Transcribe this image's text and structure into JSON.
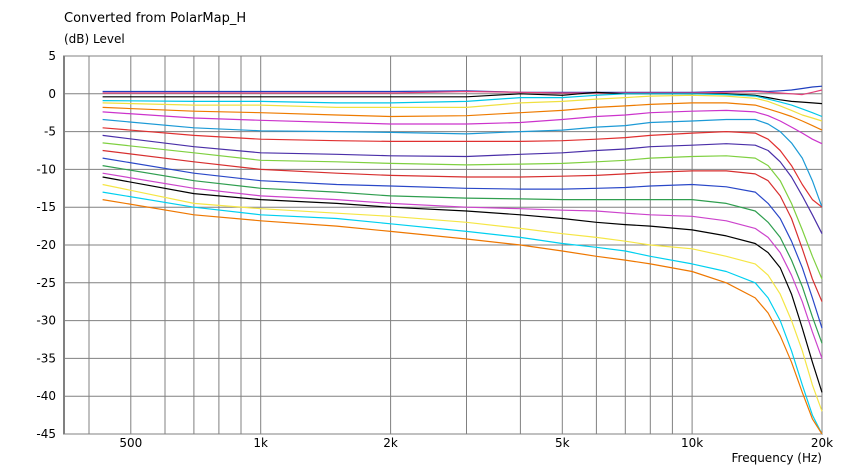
{
  "chart_data": {
    "type": "line",
    "title": "Converted from PolarMap_H",
    "ylabel": "(dB)  Level",
    "xlabel": "Frequency  (Hz)",
    "xscale": "log",
    "xlim": [
      350,
      20000
    ],
    "ylim": [
      -45,
      5
    ],
    "grid": true,
    "x_ticks": [
      {
        "value": 500,
        "label": "500"
      },
      {
        "value": 1000,
        "label": "1k"
      },
      {
        "value": 2000,
        "label": "2k"
      },
      {
        "value": 5000,
        "label": "5k"
      },
      {
        "value": 10000,
        "label": "10k"
      },
      {
        "value": 20000,
        "label": "20k"
      }
    ],
    "y_ticks": [
      5,
      0,
      -5,
      -10,
      -15,
      -20,
      -25,
      -30,
      -35,
      -40,
      -45
    ],
    "x": [
      430,
      700,
      1000,
      1500,
      2000,
      3000,
      4000,
      5000,
      6000,
      7000,
      8000,
      10000,
      12000,
      14000,
      15000,
      16000,
      17000,
      18000,
      19000,
      20000
    ],
    "series": [
      {
        "color": "#1f3fbf",
        "values": [
          0.3,
          0.3,
          0.3,
          0.3,
          0.3,
          0.4,
          0.2,
          0.2,
          0.2,
          0.2,
          0.2,
          0.2,
          0.3,
          0.4,
          0.3,
          0.4,
          0.5,
          0.7,
          0.9,
          1.0
        ]
      },
      {
        "color": "#e2407a",
        "values": [
          0.1,
          0.1,
          0.1,
          0.1,
          0.1,
          0.3,
          0.2,
          0.1,
          0.1,
          0.1,
          0.1,
          0.1,
          0.2,
          0.3,
          0.2,
          0.1,
          0.0,
          -0.1,
          0.2,
          0.5
        ]
      },
      {
        "color": "#000000",
        "values": [
          -0.4,
          -0.4,
          -0.4,
          -0.4,
          -0.4,
          -0.4,
          0.0,
          -0.2,
          0.2,
          0.0,
          0.0,
          0.0,
          0.0,
          -0.2,
          -0.5,
          -0.8,
          -1.0,
          -1.1,
          -1.2,
          -1.3
        ]
      },
      {
        "color": "#00c8e8",
        "values": [
          -0.9,
          -1.0,
          -1.0,
          -1.2,
          -1.2,
          -1.0,
          -0.5,
          -0.5,
          -0.2,
          0.0,
          0.0,
          0.0,
          -0.1,
          -0.3,
          -0.7,
          -1.1,
          -1.5,
          -2.0,
          -2.5,
          -3.0
        ]
      },
      {
        "color": "#f0e040",
        "values": [
          -1.2,
          -1.5,
          -1.5,
          -1.8,
          -1.8,
          -1.8,
          -1.2,
          -1.0,
          -0.7,
          -0.5,
          -0.3,
          -0.2,
          -0.3,
          -0.6,
          -1.0,
          -1.6,
          -2.2,
          -2.8,
          -3.2,
          -3.6
        ]
      },
      {
        "color": "#ee7b00",
        "values": [
          -1.8,
          -2.3,
          -2.5,
          -2.8,
          -3.0,
          -2.9,
          -2.5,
          -2.2,
          -1.8,
          -1.6,
          -1.4,
          -1.2,
          -1.2,
          -1.5,
          -2.0,
          -2.5,
          -3.0,
          -3.6,
          -4.2,
          -4.8
        ]
      },
      {
        "color": "#cc33cc",
        "values": [
          -2.4,
          -3.2,
          -3.5,
          -3.8,
          -4.0,
          -4.0,
          -3.8,
          -3.4,
          -3.0,
          -2.8,
          -2.5,
          -2.3,
          -2.2,
          -2.4,
          -2.9,
          -3.6,
          -4.4,
          -5.2,
          -6.0,
          -6.6
        ]
      },
      {
        "color": "#1c9ad6",
        "values": [
          -3.4,
          -4.5,
          -4.9,
          -5.0,
          -5.1,
          -5.3,
          -5.0,
          -4.8,
          -4.4,
          -4.2,
          -3.8,
          -3.6,
          -3.4,
          -3.4,
          -4.0,
          -5.0,
          -6.5,
          -8.5,
          -11.5,
          -15.0
        ]
      },
      {
        "color": "#e03030",
        "values": [
          -4.5,
          -5.5,
          -6.0,
          -6.2,
          -6.3,
          -6.3,
          -6.3,
          -6.2,
          -6.0,
          -5.8,
          -5.5,
          -5.2,
          -5.0,
          -5.2,
          -6.0,
          -7.5,
          -9.5,
          -12.0,
          -14.0,
          -15.0
        ]
      },
      {
        "color": "#4a2fa8",
        "values": [
          -5.5,
          -7.0,
          -7.8,
          -8.0,
          -8.2,
          -8.3,
          -8.0,
          -7.8,
          -7.5,
          -7.3,
          -7.0,
          -6.8,
          -6.6,
          -6.8,
          -7.5,
          -9.0,
          -11.0,
          -13.5,
          -16.0,
          -18.5
        ]
      },
      {
        "color": "#7fd040",
        "values": [
          -6.5,
          -7.8,
          -8.8,
          -9.0,
          -9.2,
          -9.4,
          -9.3,
          -9.2,
          -9.0,
          -8.8,
          -8.5,
          -8.3,
          -8.2,
          -8.5,
          -9.5,
          -11.5,
          -14.5,
          -18.0,
          -21.5,
          -24.5
        ]
      },
      {
        "color": "#d72f2f",
        "values": [
          -7.5,
          -9.0,
          -10.0,
          -10.5,
          -10.8,
          -11.0,
          -11.0,
          -10.9,
          -10.8,
          -10.6,
          -10.4,
          -10.2,
          -10.2,
          -10.6,
          -11.5,
          -13.5,
          -16.5,
          -20.5,
          -24.5,
          -27.5
        ]
      },
      {
        "color": "#2a48c8",
        "values": [
          -8.5,
          -10.5,
          -11.5,
          -12.0,
          -12.2,
          -12.5,
          -12.6,
          -12.6,
          -12.5,
          -12.4,
          -12.2,
          -12.0,
          -12.3,
          -13.0,
          -14.5,
          -16.5,
          -19.5,
          -23.0,
          -27.0,
          -31.0
        ]
      },
      {
        "color": "#2f9e4f",
        "values": [
          -9.5,
          -11.5,
          -12.5,
          -13.0,
          -13.5,
          -13.8,
          -13.9,
          -14.0,
          -14.0,
          -14.0,
          -14.0,
          -14.0,
          -14.5,
          -15.5,
          -17.0,
          -19.0,
          -22.0,
          -25.5,
          -29.5,
          -33.0
        ]
      },
      {
        "color": "#cc44cc",
        "values": [
          -10.5,
          -12.5,
          -13.5,
          -14.0,
          -14.5,
          -15.0,
          -15.2,
          -15.4,
          -15.5,
          -15.8,
          -16.0,
          -16.2,
          -16.8,
          -17.8,
          -19.0,
          -21.0,
          -24.0,
          -27.5,
          -31.5,
          -35.0
        ]
      },
      {
        "color": "#000000",
        "values": [
          -11.0,
          -13.2,
          -14.0,
          -14.5,
          -15.0,
          -15.5,
          -16.0,
          -16.5,
          -17.0,
          -17.3,
          -17.5,
          -18.0,
          -18.8,
          -19.8,
          -21.0,
          -23.0,
          -26.5,
          -31.0,
          -35.5,
          -39.5
        ]
      },
      {
        "color": "#f5e645",
        "values": [
          -12.0,
          -14.5,
          -15.2,
          -15.8,
          -16.2,
          -17.0,
          -17.8,
          -18.5,
          -19.0,
          -19.5,
          -20.0,
          -20.5,
          -21.5,
          -22.5,
          -24.0,
          -26.5,
          -30.0,
          -34.0,
          -38.5,
          -42.0
        ]
      },
      {
        "color": "#00d0f0",
        "values": [
          -13.0,
          -15.0,
          -16.0,
          -16.5,
          -17.2,
          -18.2,
          -19.0,
          -19.8,
          -20.3,
          -20.8,
          -21.5,
          -22.5,
          -23.5,
          -25.0,
          -27.0,
          -30.0,
          -34.0,
          -38.5,
          -42.5,
          -45.0
        ]
      },
      {
        "color": "#ee7700",
        "values": [
          -14.0,
          -16.0,
          -16.8,
          -17.5,
          -18.2,
          -19.2,
          -20.0,
          -20.8,
          -21.5,
          -22.0,
          -22.5,
          -23.5,
          -25.0,
          -27.0,
          -29.0,
          -32.0,
          -35.5,
          -39.5,
          -43.0,
          -45.0
        ]
      }
    ]
  }
}
